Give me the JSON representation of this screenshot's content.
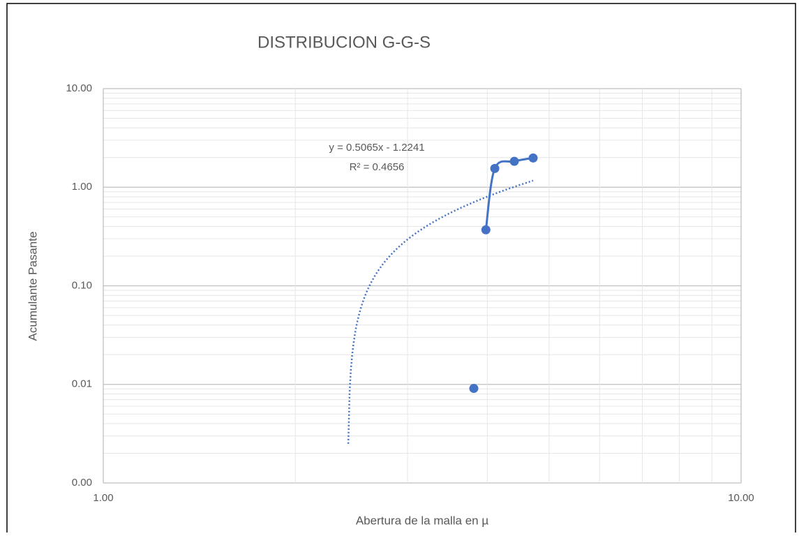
{
  "chart_data": {
    "type": "scatter",
    "title": "DISTRIBUCION G-G-S",
    "xlabel": "Abertura de la malla en µ",
    "ylabel": "Acumulante Pasante",
    "x_log": true,
    "y_log": true,
    "grid": true,
    "minor_grid": true,
    "xlim": [
      1,
      10
    ],
    "ylim": [
      0.001,
      10
    ],
    "xticks": [
      {
        "value": 1,
        "label": "1.00"
      },
      {
        "value": 10,
        "label": "10.00"
      }
    ],
    "yticks": [
      {
        "value": 0.001,
        "label": "0.00"
      },
      {
        "value": 0.01,
        "label": "0.01"
      },
      {
        "value": 0.1,
        "label": "0.10"
      },
      {
        "value": 1,
        "label": "1.00"
      },
      {
        "value": 10,
        "label": "10.00"
      }
    ],
    "series": [
      {
        "color": "#4472c4",
        "x": [
          3.81,
          3.98,
          4.11,
          4.41,
          4.72
        ],
        "values": [
          0.0091,
          0.37,
          1.55,
          1.83,
          1.98
        ]
      }
    ],
    "trendline": {
      "slope": 0.5065,
      "intercept": -1.2241,
      "equation": "y = 0.5065x - 1.2241",
      "r2": "R² = 0.4656"
    }
  }
}
